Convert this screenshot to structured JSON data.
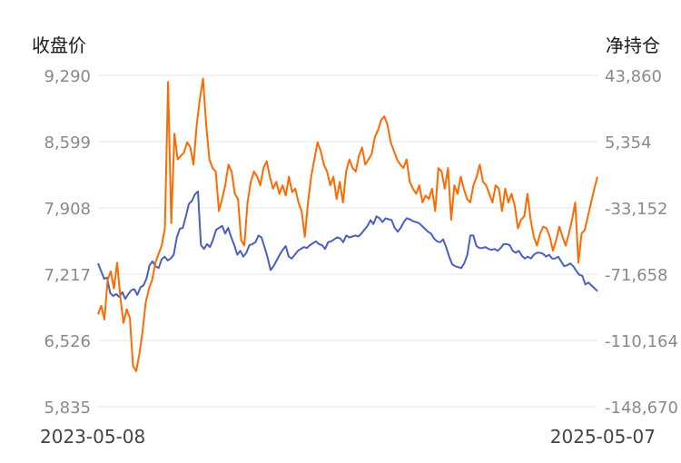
{
  "chart_data": {
    "type": "line",
    "left_axis_title": "收盘价",
    "right_axis_title": "净持仓",
    "x_labels": [
      "2023-05-08",
      "2025-05-07"
    ],
    "y_left_ticks": [
      "9,290",
      "8,599",
      "7,908",
      "7,217",
      "6,526",
      "5,835"
    ],
    "y_right_ticks": [
      "43,860",
      "5,354",
      "-33,152",
      "-71,658",
      "-110,164",
      "-148,670"
    ],
    "y_left_range": [
      5835,
      9290
    ],
    "y_right_range": [
      -148670,
      43860
    ],
    "grid": true,
    "series": [
      {
        "axis": "left",
        "color": "#4a5fc1",
        "values": [
          7330,
          7250,
          7170,
          7180,
          7020,
          6990,
          7010,
          6980,
          7030,
          6960,
          7010,
          7050,
          7060,
          7000,
          7080,
          7100,
          7170,
          7310,
          7350,
          7300,
          7280,
          7370,
          7400,
          7360,
          7380,
          7420,
          7600,
          7690,
          7700,
          7820,
          7950,
          7980,
          8050,
          8080,
          7520,
          7480,
          7530,
          7500,
          7580,
          7680,
          7700,
          7720,
          7640,
          7700,
          7600,
          7520,
          7420,
          7460,
          7400,
          7440,
          7520,
          7530,
          7550,
          7620,
          7600,
          7500,
          7390,
          7260,
          7300,
          7360,
          7420,
          7470,
          7510,
          7400,
          7380,
          7420,
          7460,
          7480,
          7500,
          7490,
          7520,
          7540,
          7560,
          7530,
          7520,
          7480,
          7550,
          7560,
          7580,
          7600,
          7590,
          7550,
          7620,
          7600,
          7610,
          7620,
          7610,
          7640,
          7680,
          7720,
          7780,
          7740,
          7820,
          7800,
          7760,
          7800,
          7790,
          7780,
          7700,
          7660,
          7700,
          7760,
          7800,
          7790,
          7770,
          7760,
          7750,
          7720,
          7690,
          7660,
          7640,
          7590,
          7560,
          7550,
          7580,
          7500,
          7400,
          7320,
          7300,
          7290,
          7280,
          7330,
          7420,
          7620,
          7620,
          7510,
          7490,
          7490,
          7500,
          7480,
          7470,
          7480,
          7460,
          7490,
          7530,
          7530,
          7520,
          7460,
          7440,
          7460,
          7410,
          7380,
          7400,
          7380,
          7420,
          7440,
          7440,
          7430,
          7400,
          7420,
          7380,
          7380,
          7400,
          7350,
          7300,
          7310,
          7330,
          7300,
          7250,
          7210,
          7200,
          7110,
          7130,
          7100,
          7070,
          7040
        ],
        "name": ""
      },
      {
        "axis": "right",
        "color": "#ff6a00",
        "values": [
          -95000,
          -90000,
          -98000,
          -75000,
          -70000,
          -80000,
          -65000,
          -85000,
          -100000,
          -92000,
          -97000,
          -125000,
          -128000,
          -118000,
          -105000,
          -88000,
          -80000,
          -75000,
          -65000,
          -60000,
          -55000,
          -45000,
          40000,
          -42000,
          10000,
          -5000,
          -3000,
          -1000,
          5000,
          2000,
          -8000,
          15000,
          30000,
          42000,
          15000,
          -5000,
          -10000,
          -12000,
          -35000,
          -28000,
          -20000,
          -8000,
          -12000,
          -25000,
          -28000,
          -52000,
          -55000,
          -30000,
          -18000,
          -12000,
          -15000,
          -20000,
          -10000,
          -6000,
          -15000,
          -22000,
          -18000,
          -25000,
          -20000,
          -26000,
          -15000,
          -24000,
          -22000,
          -30000,
          -35000,
          -50000,
          -30000,
          -15000,
          -5000,
          5000,
          0,
          -8000,
          -12000,
          -20000,
          -15000,
          -28000,
          -18000,
          -30000,
          -12000,
          -5000,
          -10000,
          -12000,
          -3000,
          2000,
          -8000,
          -5000,
          -2000,
          8000,
          12000,
          18000,
          20000,
          15000,
          5000,
          0,
          -5000,
          -8000,
          -10000,
          -5000,
          -18000,
          -22000,
          -25000,
          -20000,
          -30000,
          -26000,
          -28000,
          -22000,
          -35000,
          -10000,
          -12000,
          -22000,
          -10000,
          -40000,
          -20000,
          -25000,
          -15000,
          -22000,
          -28000,
          -30000,
          -20000,
          -15000,
          -8000,
          -18000,
          -20000,
          -25000,
          -30000,
          -20000,
          -22000,
          -35000,
          -22000,
          -30000,
          -25000,
          -32000,
          -45000,
          -40000,
          -38000,
          -25000,
          -40000,
          -50000,
          -55000,
          -48000,
          -44000,
          -45000,
          -50000,
          -58000,
          -52000,
          -44000,
          -50000,
          -55000,
          -48000,
          -40000,
          -30000,
          -65000,
          -48000,
          -46000,
          -38000,
          -30000,
          -22000,
          -15000
        ],
        "name": ""
      }
    ]
  }
}
